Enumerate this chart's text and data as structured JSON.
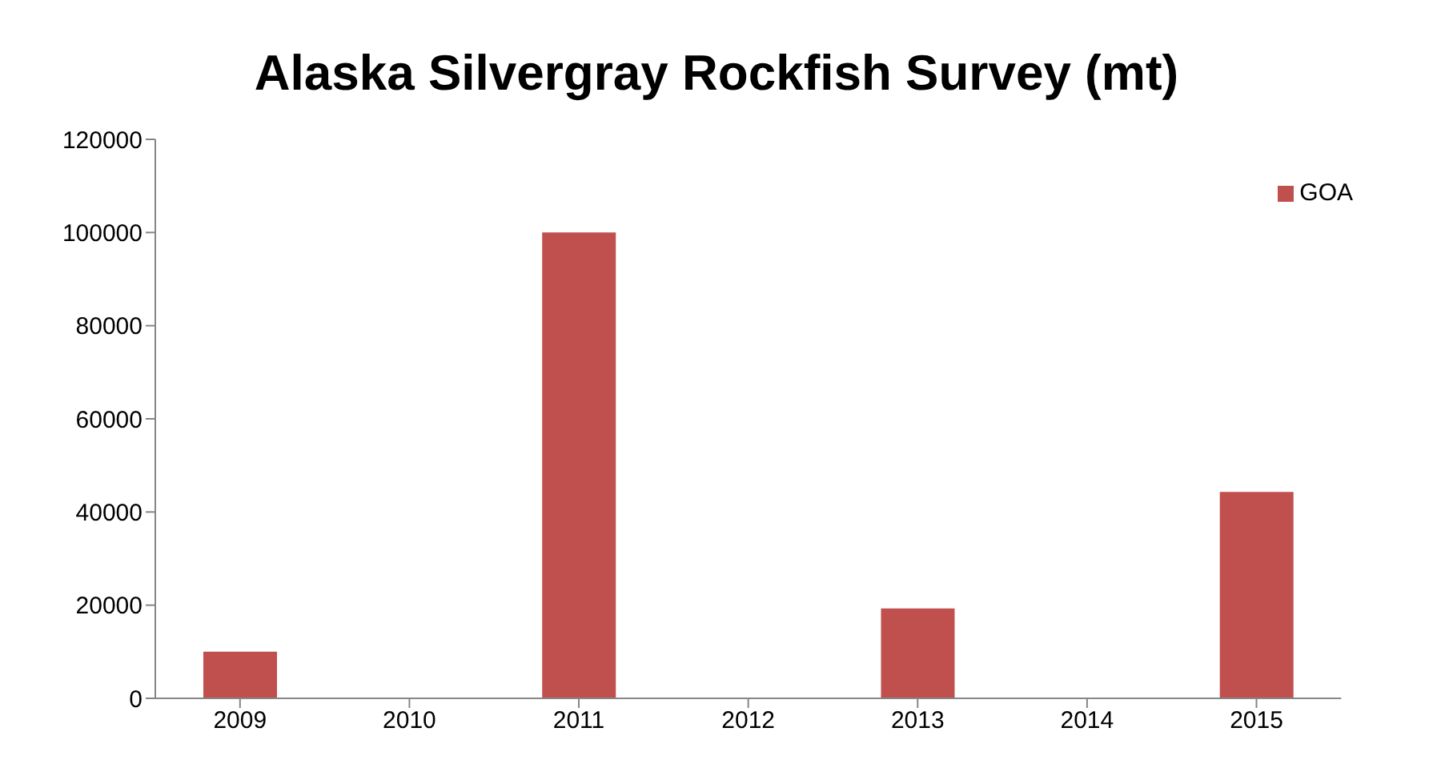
{
  "chart_data": {
    "type": "bar",
    "title": "Alaska Silvergray Rockfish Survey (mt)",
    "categories": [
      "2009",
      "2010",
      "2011",
      "2012",
      "2013",
      "2014",
      "2015"
    ],
    "series": [
      {
        "name": "GOA",
        "color": "#c0504d",
        "values": [
          10000,
          null,
          100000,
          null,
          19300,
          null,
          44300
        ]
      }
    ],
    "ylim": [
      0,
      120000
    ],
    "yticks": [
      0,
      20000,
      40000,
      60000,
      80000,
      100000,
      120000
    ],
    "grid": false,
    "legend": "top right"
  }
}
